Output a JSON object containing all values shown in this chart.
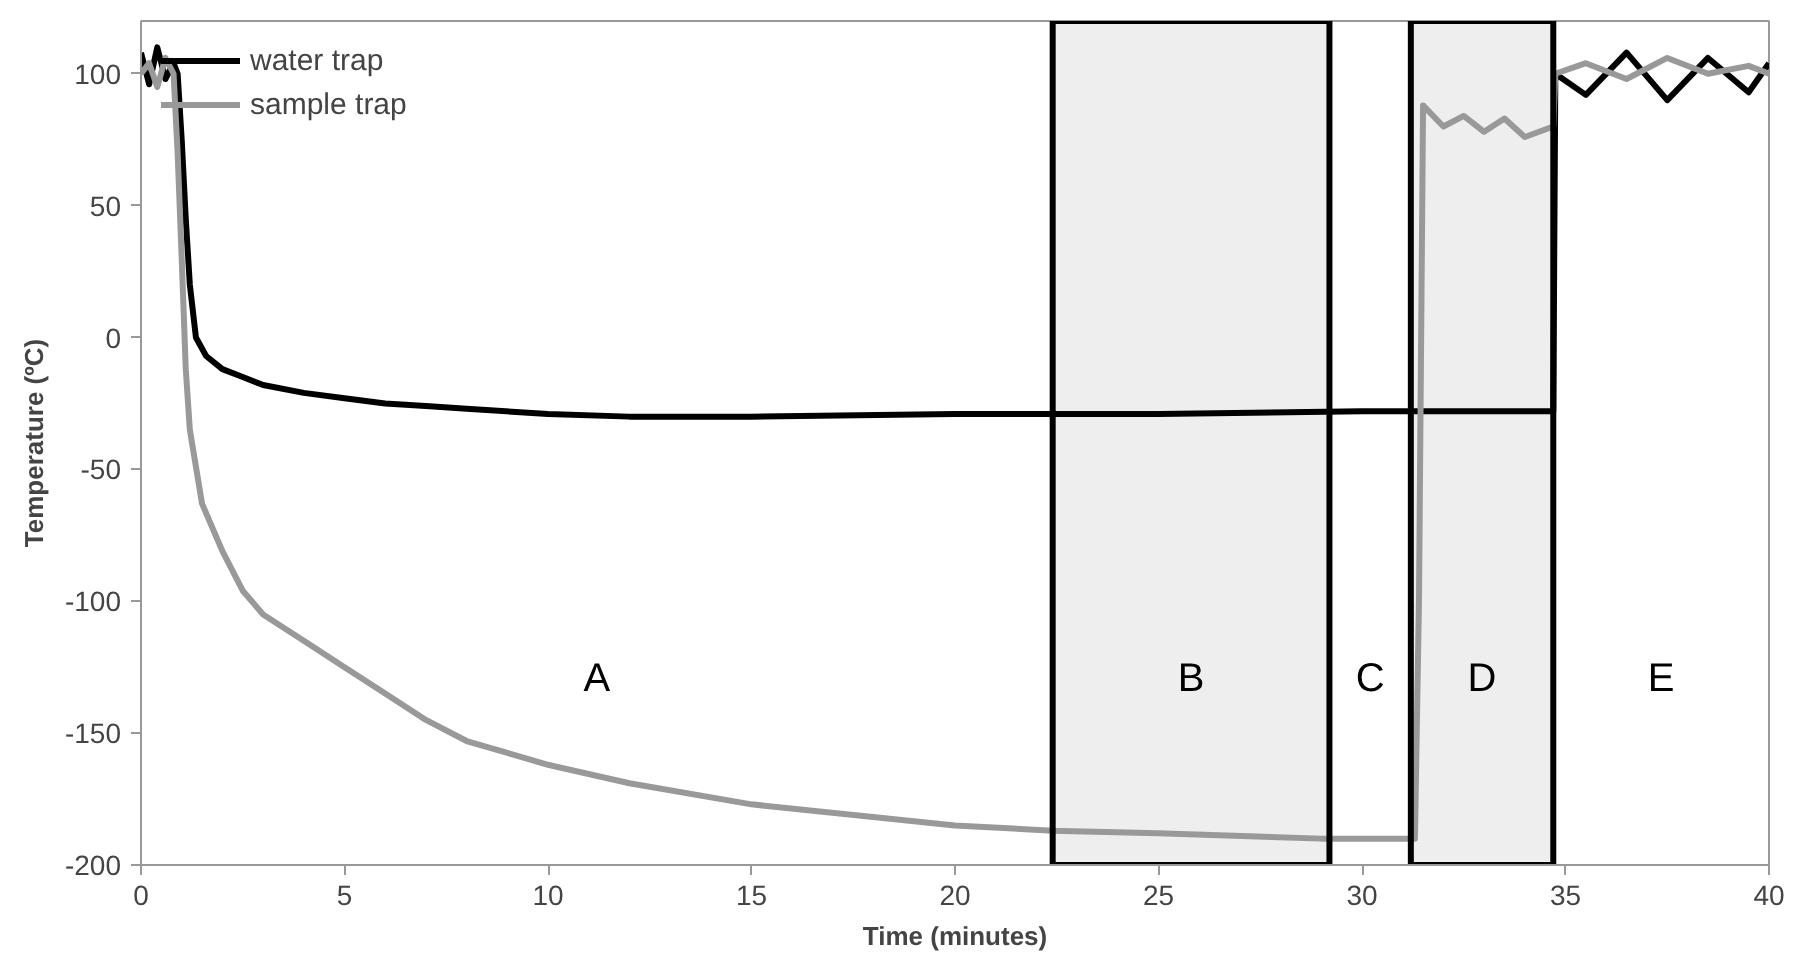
{
  "chart_data": {
    "type": "line",
    "xlabel": "Time (minutes)",
    "ylabel": "Temperature (ºC)",
    "xlim": [
      0,
      40
    ],
    "ylim": [
      -200,
      120
    ],
    "xticks": [
      0,
      5,
      10,
      15,
      20,
      25,
      30,
      35,
      40
    ],
    "yticks": [
      -200,
      -150,
      -100,
      -50,
      0,
      50,
      100
    ],
    "grid": false,
    "legend": "top left",
    "series": [
      {
        "name": "water trap",
        "color": "#000000",
        "x": [
          0,
          0.2,
          0.4,
          0.6,
          0.8,
          0.9,
          1.0,
          1.1,
          1.2,
          1.35,
          1.6,
          2,
          2.5,
          3,
          4,
          5,
          6,
          7,
          8,
          10,
          12,
          15,
          20,
          25,
          30,
          34.7,
          34.75,
          35.5,
          36.5,
          37.5,
          38.5,
          39.5,
          40
        ],
        "values": [
          108,
          96,
          110,
          98,
          104,
          100,
          75,
          45,
          20,
          0,
          -7,
          -12,
          -15,
          -18,
          -21,
          -23,
          -25,
          -26,
          -27,
          -29,
          -30,
          -30,
          -29,
          -29,
          -28,
          -28,
          100,
          92,
          108,
          90,
          106,
          93,
          104
        ]
      },
      {
        "name": "sample trap",
        "color": "#999999",
        "x": [
          0,
          0.2,
          0.4,
          0.6,
          0.8,
          0.9,
          1.0,
          1.1,
          1.2,
          1.5,
          2,
          2.5,
          3,
          4,
          5,
          6,
          7,
          8,
          10,
          12,
          15,
          20,
          22.4,
          25,
          29,
          31.3,
          31.4,
          31.5,
          32,
          32.5,
          33,
          33.5,
          34,
          34.7,
          34.75,
          35.5,
          36.5,
          37.5,
          38.5,
          39.5,
          40
        ],
        "values": [
          100,
          104,
          95,
          106,
          100,
          70,
          30,
          -12,
          -35,
          -63,
          -81,
          -96,
          -105,
          -115,
          -125,
          -135,
          -145,
          -153,
          -162,
          -169,
          -177,
          -185,
          -187,
          -188,
          -190,
          -190,
          -100,
          88,
          80,
          84,
          78,
          83,
          76,
          80,
          100,
          104,
          98,
          106,
          100,
          103,
          100
        ]
      }
    ],
    "bands": [
      {
        "axis": "x",
        "from": 22.4,
        "to": 29.2,
        "label": "B",
        "color": "#eeeeee"
      },
      {
        "axis": "x",
        "from": 31.2,
        "to": 34.7,
        "label": "D",
        "color": "#eeeeee"
      }
    ],
    "annotations": [
      "A",
      "C",
      "E"
    ]
  }
}
